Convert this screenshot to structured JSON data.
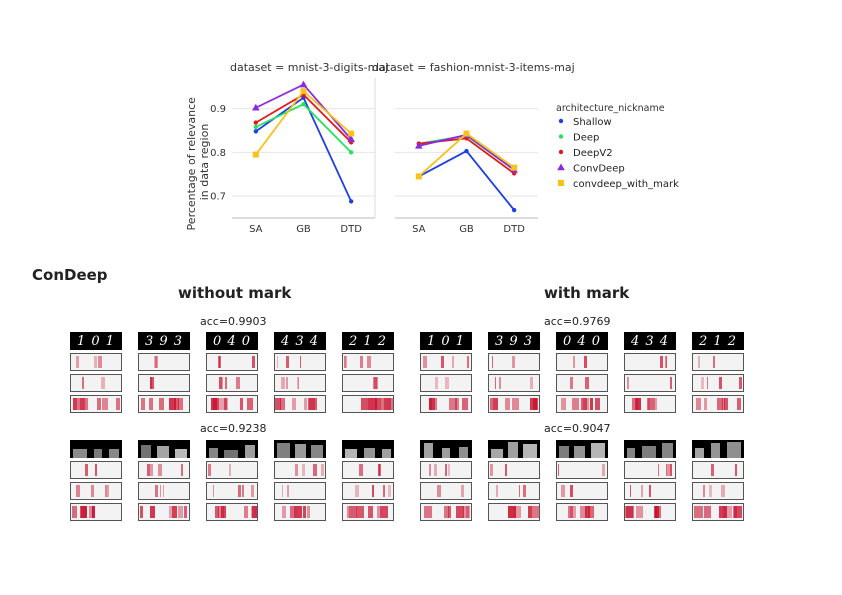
{
  "chart_data": [
    {
      "type": "line",
      "title": "dataset = mnist-3-digits-maj",
      "categories": [
        "SA",
        "GB",
        "DTD"
      ],
      "ylabel": "Percentage of relevance\nin data region",
      "ylim": [
        0.65,
        0.97
      ],
      "yticks": [
        0.7,
        0.8,
        0.9
      ],
      "series": [
        {
          "name": "Shallow",
          "values": [
            0.848,
            0.925,
            0.688
          ]
        },
        {
          "name": "Deep",
          "values": [
            0.858,
            0.91,
            0.8
          ]
        },
        {
          "name": "DeepV2",
          "values": [
            0.868,
            0.932,
            0.823
          ]
        },
        {
          "name": "ConvDeep",
          "values": [
            0.902,
            0.955,
            0.83
          ]
        },
        {
          "name": "convdeep_with_mark",
          "values": [
            0.795,
            0.94,
            0.843
          ]
        }
      ]
    },
    {
      "type": "line",
      "title": "dataset = fashion-mnist-3-items-maj",
      "categories": [
        "SA",
        "GB",
        "DTD"
      ],
      "ylim": [
        0.65,
        0.97
      ],
      "series": [
        {
          "name": "Shallow",
          "values": [
            0.745,
            0.803,
            0.668
          ]
        },
        {
          "name": "Deep",
          "values": [
            0.82,
            0.838,
            0.76
          ]
        },
        {
          "name": "DeepV2",
          "values": [
            0.82,
            0.832,
            0.752
          ]
        },
        {
          "name": "ConvDeep",
          "values": [
            0.815,
            0.84,
            0.76
          ]
        },
        {
          "name": "convdeep_with_mark",
          "values": [
            0.745,
            0.843,
            0.765
          ]
        }
      ]
    }
  ],
  "legend": {
    "title": "architecture_nickname",
    "items": [
      {
        "label": "Shallow",
        "color": "#1f3fe6",
        "marker": "circle"
      },
      {
        "label": "Deep",
        "color": "#21e55a",
        "marker": "circle"
      },
      {
        "label": "DeepV2",
        "color": "#e31a1c",
        "marker": "circle"
      },
      {
        "label": "ConvDeep",
        "color": "#8a2be2",
        "marker": "triangle"
      },
      {
        "label": "convdeep_with_mark",
        "color": "#f7c21b",
        "marker": "square"
      }
    ]
  },
  "figure2": {
    "model_title": "ConDeep",
    "without_mark_title": "without mark",
    "with_mark_title": "with mark",
    "acc_mnist_without": "acc=0.9903",
    "acc_mnist_with": "acc=0.9769",
    "acc_fashion_without": "acc=0.9238",
    "acc_fashion_with": "acc=0.9047",
    "mnist_samples": [
      "1 0 1",
      "3 9 3",
      "0 4 0",
      "4 3 4",
      "2 1 2"
    ],
    "heat_color": "#c8102e"
  }
}
